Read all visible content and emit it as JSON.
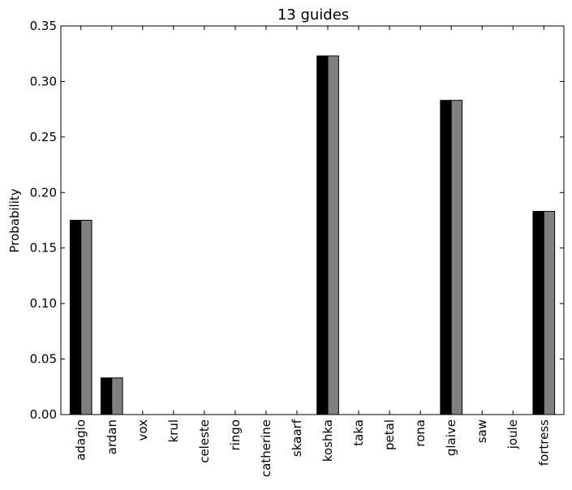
{
  "chart_data": {
    "type": "bar",
    "title": "13 guides",
    "xlabel": "",
    "ylabel": "Probability",
    "ylim": [
      0,
      0.35
    ],
    "yticks": [
      "0.00",
      "0.05",
      "0.10",
      "0.15",
      "0.20",
      "0.25",
      "0.30",
      "0.35"
    ],
    "categories": [
      "adagio",
      "ardan",
      "vox",
      "krul",
      "celeste",
      "ringo",
      "catherine",
      "skaarf",
      "koshka",
      "taka",
      "petal",
      "rona",
      "glaive",
      "saw",
      "joule",
      "fortress"
    ],
    "series": [
      {
        "color": "#000000",
        "values": [
          0.175,
          0.033,
          0,
          0,
          0,
          0,
          0,
          0,
          0.323,
          0,
          0,
          0,
          0.283,
          0,
          0,
          0.183
        ]
      },
      {
        "color": "#808080",
        "values": [
          0.175,
          0.033,
          0,
          0,
          0,
          0,
          0,
          0,
          0.323,
          0,
          0,
          0,
          0.283,
          0,
          0,
          0.183
        ]
      }
    ],
    "grid": false,
    "legend": "none"
  }
}
